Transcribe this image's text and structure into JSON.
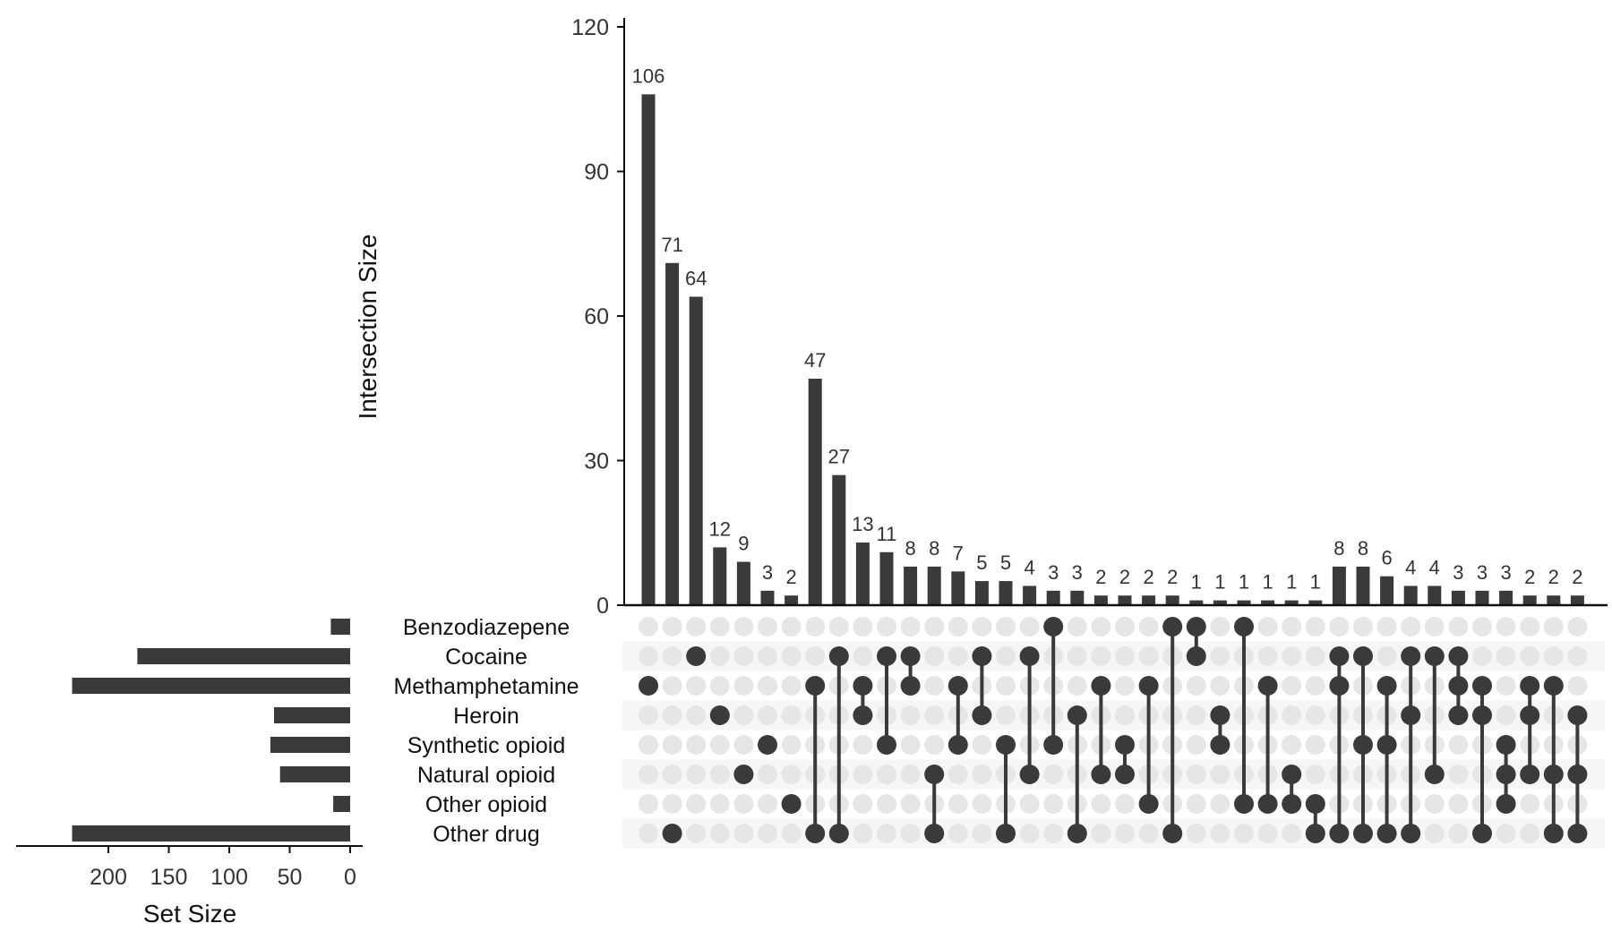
{
  "chart_data": {
    "type": "upset",
    "colors": {
      "bar": "#3a3a3a",
      "dot_active": "#3a3a3a",
      "dot_inactive": "#e6e6e6",
      "stripe": "#f6f6f6",
      "axis": "#111111"
    },
    "intersection_axis": {
      "label": "Intersection Size",
      "ylim": [
        0,
        120
      ],
      "ticks": [
        0,
        30,
        60,
        90,
        120
      ]
    },
    "set_size_axis": {
      "label": "Set Size",
      "xlim": [
        0,
        240
      ],
      "ticks": [
        200,
        150,
        100,
        50,
        0
      ],
      "direction": "reversed"
    },
    "sets": [
      {
        "name": "Benzodiazepene",
        "size": 16
      },
      {
        "name": "Cocaine",
        "size": 176
      },
      {
        "name": "Methamphetamine",
        "size": 230
      },
      {
        "name": "Heroin",
        "size": 63
      },
      {
        "name": "Synthetic opioid",
        "size": 66
      },
      {
        "name": "Natural opioid",
        "size": 58
      },
      {
        "name": "Other opioid",
        "size": 14
      },
      {
        "name": "Other drug",
        "size": 230
      }
    ],
    "intersections": [
      {
        "size": 106,
        "label": "106",
        "sets": [
          2
        ]
      },
      {
        "size": 71,
        "label": "71",
        "sets": [
          7
        ]
      },
      {
        "size": 64,
        "label": "64",
        "sets": [
          1
        ]
      },
      {
        "size": 12,
        "label": "12",
        "sets": [
          3
        ]
      },
      {
        "size": 9,
        "label": "9",
        "sets": [
          5
        ]
      },
      {
        "size": 3,
        "label": "3",
        "sets": [
          4
        ]
      },
      {
        "size": 2,
        "label": "2",
        "sets": [
          6
        ]
      },
      {
        "size": 47,
        "label": "47",
        "sets": [
          2,
          7
        ]
      },
      {
        "size": 27,
        "label": "27",
        "sets": [
          1,
          7
        ]
      },
      {
        "size": 13,
        "label": "13",
        "sets": [
          2,
          3
        ]
      },
      {
        "size": 11,
        "label": "11",
        "sets": [
          1,
          4
        ]
      },
      {
        "size": 8,
        "label": "8",
        "sets": [
          1,
          2
        ]
      },
      {
        "size": 8,
        "label": "8",
        "sets": [
          5,
          7
        ]
      },
      {
        "size": 7,
        "label": "7",
        "sets": [
          2,
          4
        ]
      },
      {
        "size": 5,
        "label": "5",
        "sets": [
          1,
          3
        ]
      },
      {
        "size": 5,
        "label": "5",
        "sets": [
          4,
          7
        ]
      },
      {
        "size": 4,
        "label": "4",
        "sets": [
          1,
          5
        ]
      },
      {
        "size": 3,
        "label": "3",
        "sets": [
          0,
          4
        ]
      },
      {
        "size": 3,
        "label": "3",
        "sets": [
          3,
          7
        ]
      },
      {
        "size": 2,
        "label": "2",
        "sets": [
          2,
          5
        ]
      },
      {
        "size": 2,
        "label": "2",
        "sets": [
          4,
          5
        ]
      },
      {
        "size": 2,
        "label": "2",
        "sets": [
          2,
          6
        ]
      },
      {
        "size": 2,
        "label": "2",
        "sets": [
          0,
          7
        ]
      },
      {
        "size": 1,
        "label": "1",
        "sets": [
          0,
          1
        ]
      },
      {
        "size": 1,
        "label": "1",
        "sets": [
          3,
          4
        ]
      },
      {
        "size": 1,
        "label": "1",
        "sets": [
          0,
          6
        ]
      },
      {
        "size": 1,
        "label": "1",
        "sets": [
          2,
          6
        ]
      },
      {
        "size": 1,
        "label": "1",
        "sets": [
          5,
          6
        ]
      },
      {
        "size": 1,
        "label": "1",
        "sets": [
          6,
          7
        ]
      },
      {
        "size": 8,
        "label": "8",
        "sets": [
          1,
          2,
          7
        ]
      },
      {
        "size": 8,
        "label": "8",
        "sets": [
          1,
          4,
          7
        ]
      },
      {
        "size": 6,
        "label": "6",
        "sets": [
          2,
          4,
          7
        ]
      },
      {
        "size": 4,
        "label": "4",
        "sets": [
          1,
          3,
          7
        ]
      },
      {
        "size": 4,
        "label": "4",
        "sets": [
          1,
          5
        ]
      },
      {
        "size": 3,
        "label": "3",
        "sets": [
          1,
          2,
          3
        ]
      },
      {
        "size": 3,
        "label": "3",
        "sets": [
          2,
          3,
          7
        ]
      },
      {
        "size": 3,
        "label": "3",
        "sets": [
          4,
          5,
          6
        ]
      },
      {
        "size": 2,
        "label": "2",
        "sets": [
          2,
          3,
          5
        ]
      },
      {
        "size": 2,
        "label": "2",
        "sets": [
          2,
          5,
          7
        ]
      },
      {
        "size": 2,
        "label": "2",
        "sets": [
          3,
          5,
          7
        ]
      }
    ]
  }
}
